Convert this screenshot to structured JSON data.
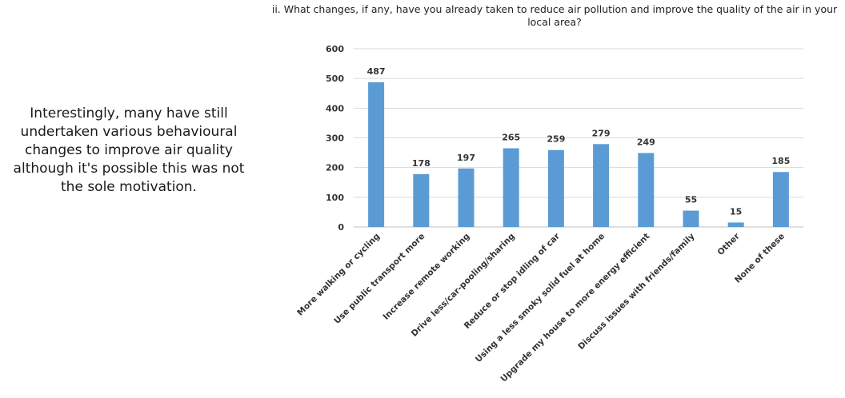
{
  "note": {
    "text": "Interestingly, many have still undertaken various behavioural changes to improve air quality although it's possible this was not the sole motivation."
  },
  "chart_data": {
    "type": "bar",
    "title": "ii. What changes, if any, have you already taken to reduce air pollution and improve the quality of the air in your local area?",
    "xlabel": "",
    "ylabel": "",
    "ylim": [
      0,
      600
    ],
    "yticks": [
      0,
      100,
      200,
      300,
      400,
      500,
      600
    ],
    "grid": true,
    "bar_color": "#5b9bd5",
    "categories": [
      "More walking or cycling",
      "Use public transport more",
      "Increase remote working",
      "Drive less/car-pooling/sharing",
      "Reduce or stop idling of car",
      "Using a less smoky solid fuel at home",
      "Upgrade my house to more energy efficient",
      "Discuss issues with friends/family",
      "Other",
      "None of these"
    ],
    "values": [
      487,
      178,
      197,
      265,
      259,
      279,
      249,
      55,
      15,
      185
    ]
  }
}
